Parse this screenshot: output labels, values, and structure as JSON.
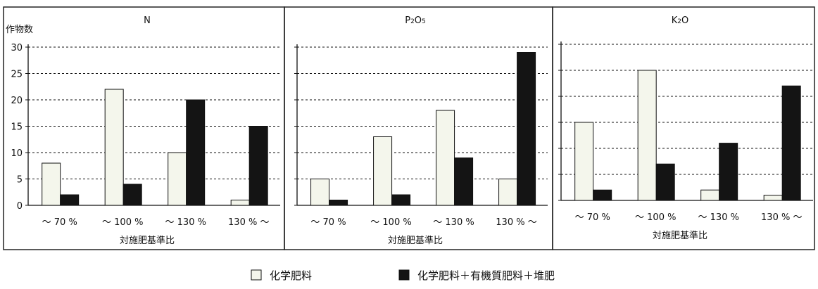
{
  "legend": {
    "items": [
      {
        "label": "化学肥料",
        "color": "#f4f6ec"
      },
      {
        "label": "化学肥料＋有機質肥料＋堆肥",
        "color": "#141414"
      }
    ]
  },
  "chart_data": [
    {
      "type": "bar",
      "title": "N",
      "ylabel": "作物数",
      "xlabel": "対施肥基準比",
      "ylim": [
        0,
        30
      ],
      "yticks": [
        0,
        5,
        10,
        15,
        20,
        25,
        30
      ],
      "yticks_visible": true,
      "grid": true,
      "categories": [
        "～ 70 %",
        "～ 100 %",
        "～ 130 %",
        "130 % ～"
      ],
      "series": [
        {
          "name": "化学肥料",
          "values": [
            8,
            22,
            10,
            1
          ]
        },
        {
          "name": "化学肥料＋有機質肥料＋堆肥",
          "values": [
            2,
            4,
            20,
            15
          ]
        }
      ]
    },
    {
      "type": "bar",
      "title": "P2O5",
      "ylabel": "",
      "xlabel": "対施肥基準比",
      "ylim": [
        0,
        30
      ],
      "yticks": [
        0,
        5,
        10,
        15,
        20,
        25,
        30
      ],
      "yticks_visible": false,
      "grid": true,
      "categories": [
        "～ 70 %",
        "～ 100 %",
        "～ 130 %",
        "130 % ～"
      ],
      "series": [
        {
          "name": "化学肥料",
          "values": [
            5,
            13,
            18,
            5
          ]
        },
        {
          "name": "化学肥料＋有機質肥料＋堆肥",
          "values": [
            1,
            2,
            9,
            29
          ]
        }
      ]
    },
    {
      "type": "bar",
      "title": "K2O",
      "ylabel": "",
      "xlabel": "対施肥基準比",
      "ylim": [
        0,
        30
      ],
      "yticks": [
        0,
        5,
        10,
        15,
        20,
        25,
        30
      ],
      "yticks_visible": false,
      "grid": true,
      "categories": [
        "～ 70 %",
        "～ 100 %",
        "～ 130 %",
        "130 % ～"
      ],
      "series": [
        {
          "name": "化学肥料",
          "values": [
            15,
            25,
            2,
            1
          ]
        },
        {
          "name": "化学肥料＋有機質肥料＋堆肥",
          "values": [
            2,
            7,
            11,
            22
          ]
        }
      ]
    }
  ]
}
